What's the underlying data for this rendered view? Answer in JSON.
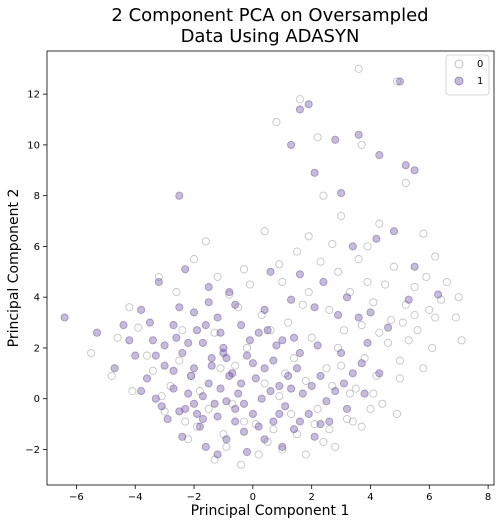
{
  "chart_data": {
    "type": "scatter",
    "title_lines": [
      "2 Component PCA on Oversampled",
      "Data Using ADASYN"
    ],
    "xlabel": "Principal Component 1",
    "ylabel": "Principal Component 2",
    "xlim": [
      -7.0,
      8.2
    ],
    "ylim": [
      -3.4,
      13.7
    ],
    "xticks": [
      -6,
      -4,
      -2,
      0,
      2,
      4,
      6,
      8
    ],
    "yticks": [
      -2,
      0,
      2,
      4,
      6,
      8,
      10,
      12
    ],
    "legend_position": "upper-right",
    "grid": false,
    "series": [
      {
        "name": "0",
        "style": "hollow",
        "color": "#7f7f7f",
        "points": [
          [
            3.6,
            13.0
          ],
          [
            1.6,
            11.8
          ],
          [
            4.9,
            12.5
          ],
          [
            0.8,
            10.9
          ],
          [
            2.2,
            10.3
          ],
          [
            3.7,
            10.0
          ],
          [
            5.2,
            8.5
          ],
          [
            2.4,
            8.0
          ],
          [
            3.0,
            7.2
          ],
          [
            4.3,
            6.9
          ],
          [
            5.8,
            6.5
          ],
          [
            3.9,
            6.0
          ],
          [
            1.5,
            5.8
          ],
          [
            6.2,
            5.6
          ],
          [
            4.8,
            5.2
          ],
          [
            2.9,
            5.0
          ],
          [
            6.6,
            4.6
          ],
          [
            5.5,
            4.4
          ],
          [
            7.0,
            4.0
          ],
          [
            3.3,
            4.2
          ],
          [
            4.1,
            3.8
          ],
          [
            6.0,
            3.5
          ],
          [
            6.9,
            3.2
          ],
          [
            5.1,
            3.0
          ],
          [
            3.7,
            2.9
          ],
          [
            2.6,
            3.5
          ],
          [
            1.9,
            4.2
          ],
          [
            1.0,
            4.6
          ],
          [
            -0.1,
            4.5
          ],
          [
            -0.8,
            4.1
          ],
          [
            -1.6,
            6.2
          ],
          [
            0.4,
            6.6
          ],
          [
            -2.0,
            5.5
          ],
          [
            -3.2,
            4.8
          ],
          [
            -4.2,
            3.6
          ],
          [
            -4.6,
            2.4
          ],
          [
            -3.6,
            1.7
          ],
          [
            -4.8,
            0.9
          ],
          [
            -5.5,
            1.8
          ],
          [
            -3.0,
            -0.5
          ],
          [
            -2.2,
            -1.6
          ],
          [
            -1.3,
            -2.4
          ],
          [
            -0.4,
            -2.6
          ],
          [
            0.5,
            -1.7
          ],
          [
            1.5,
            -1.4
          ],
          [
            2.4,
            -1.7
          ],
          [
            3.2,
            -0.8
          ],
          [
            3.5,
            0.4
          ],
          [
            4.2,
            0.9
          ],
          [
            4.6,
            2.2
          ],
          [
            5.0,
            1.5
          ],
          [
            5.6,
            2.7
          ],
          [
            6.1,
            2.0
          ],
          [
            7.1,
            2.3
          ],
          [
            6.2,
            3.2
          ],
          [
            5.9,
            4.8
          ],
          [
            0.1,
            -1.0
          ],
          [
            -0.7,
            -0.2
          ],
          [
            0.9,
            0.1
          ],
          [
            1.8,
            0.7
          ],
          [
            2.2,
            -0.4
          ],
          [
            2.7,
            0.5
          ],
          [
            3.0,
            1.3
          ],
          [
            1.4,
            1.6
          ],
          [
            0.6,
            2.7
          ],
          [
            -0.2,
            2.0
          ],
          [
            -1.1,
            1.2
          ],
          [
            -1.8,
            0.3
          ],
          [
            -2.5,
            1.5
          ],
          [
            -1.3,
            2.6
          ],
          [
            0.3,
            3.3
          ],
          [
            1.2,
            3.0
          ],
          [
            2.0,
            2.4
          ],
          [
            2.9,
            2.0
          ],
          [
            3.8,
            1.6
          ],
          [
            4.4,
            -0.2
          ],
          [
            3.4,
            -0.9
          ],
          [
            2.6,
            -1.2
          ],
          [
            1.0,
            -2.0
          ],
          [
            -0.9,
            -1.9
          ],
          [
            -1.9,
            -1.1
          ],
          [
            -2.8,
            0.5
          ],
          [
            -3.4,
            1.1
          ],
          [
            -4.1,
            0.3
          ],
          [
            -2.4,
            2.7
          ],
          [
            -0.5,
            3.6
          ],
          [
            1.7,
            3.7
          ],
          [
            2.3,
            5.4
          ],
          [
            3.9,
            4.6
          ],
          [
            4.7,
            3.1
          ],
          [
            5.3,
            2.3
          ],
          [
            5.8,
            1.2
          ],
          [
            4.9,
            -0.6
          ],
          [
            4.0,
            -0.4
          ],
          [
            2.8,
            -1.9
          ],
          [
            1.8,
            -2.2
          ],
          [
            0.7,
            -1.2
          ],
          [
            -0.3,
            -0.9
          ],
          [
            -1.5,
            -0.4
          ],
          [
            -2.1,
            0.9
          ],
          [
            -0.6,
            1.3
          ],
          [
            0.4,
            0.6
          ],
          [
            1.1,
            1.0
          ],
          [
            2.5,
            1.2
          ],
          [
            3.3,
            0.2
          ],
          [
            3.1,
            2.7
          ],
          [
            4.3,
            2.6
          ],
          [
            5.2,
            3.7
          ],
          [
            6.4,
            3.9
          ],
          [
            4.5,
            4.5
          ],
          [
            3.6,
            5.5
          ],
          [
            2.7,
            6.1
          ],
          [
            1.9,
            6.4
          ],
          [
            0.9,
            5.3
          ],
          [
            -0.3,
            5.1
          ],
          [
            -1.2,
            4.8
          ],
          [
            -2.6,
            4.2
          ],
          [
            -3.9,
            2.8
          ],
          [
            -3.1,
            0.1
          ],
          [
            -2.3,
            -0.9
          ],
          [
            -1.0,
            -1.4
          ],
          [
            0.2,
            -2.2
          ],
          [
            1.3,
            -0.6
          ],
          [
            2.1,
            -1.0
          ],
          [
            3.7,
            -1.1
          ],
          [
            4.1,
            0.2
          ],
          [
            5.0,
            0.8
          ],
          [
            5.5,
            3.3
          ]
        ]
      },
      {
        "name": "1",
        "style": "filled",
        "color": "#5b3f95",
        "points": [
          [
            5.0,
            12.5
          ],
          [
            1.9,
            11.6
          ],
          [
            1.6,
            11.4
          ],
          [
            3.6,
            10.4
          ],
          [
            2.8,
            10.2
          ],
          [
            1.3,
            10.0
          ],
          [
            4.3,
            9.6
          ],
          [
            5.2,
            9.2
          ],
          [
            5.5,
            9.0
          ],
          [
            2.1,
            8.9
          ],
          [
            -2.5,
            8.0
          ],
          [
            3.0,
            8.1
          ],
          [
            4.8,
            6.6
          ],
          [
            4.2,
            6.3
          ],
          [
            3.4,
            6.0
          ],
          [
            5.5,
            5.2
          ],
          [
            -6.4,
            3.2
          ],
          [
            -5.3,
            2.6
          ],
          [
            -4.4,
            2.9
          ],
          [
            -3.8,
            3.5
          ],
          [
            -3.2,
            4.6
          ],
          [
            -2.3,
            5.1
          ],
          [
            -1.5,
            4.4
          ],
          [
            -0.8,
            4.2
          ],
          [
            0.6,
            5.0
          ],
          [
            1.6,
            4.9
          ],
          [
            2.4,
            4.6
          ],
          [
            3.2,
            4.0
          ],
          [
            4.0,
            3.4
          ],
          [
            4.6,
            2.8
          ],
          [
            5.3,
            3.9
          ],
          [
            6.3,
            4.1
          ],
          [
            -4.7,
            1.2
          ],
          [
            -4.0,
            1.7
          ],
          [
            -3.4,
            2.3
          ],
          [
            -2.7,
            2.9
          ],
          [
            -2.0,
            3.4
          ],
          [
            -1.2,
            3.2
          ],
          [
            -0.4,
            2.9
          ],
          [
            0.5,
            2.7
          ],
          [
            1.4,
            2.4
          ],
          [
            2.2,
            2.1
          ],
          [
            3.0,
            1.8
          ],
          [
            3.7,
            1.4
          ],
          [
            4.3,
            1.0
          ],
          [
            -3.6,
            0.8
          ],
          [
            -3.0,
            1.3
          ],
          [
            -2.4,
            1.8
          ],
          [
            -1.7,
            2.2
          ],
          [
            -1.0,
            2.0
          ],
          [
            -0.2,
            1.7
          ],
          [
            0.7,
            1.5
          ],
          [
            1.5,
            1.2
          ],
          [
            2.3,
            0.9
          ],
          [
            3.1,
            0.6
          ],
          [
            3.8,
            0.2
          ],
          [
            -3.3,
            0.0
          ],
          [
            -2.7,
            0.4
          ],
          [
            -2.1,
            0.9
          ],
          [
            -1.4,
            1.3
          ],
          [
            -0.7,
            1.0
          ],
          [
            0.1,
            0.8
          ],
          [
            0.9,
            0.5
          ],
          [
            1.7,
            0.2
          ],
          [
            2.5,
            -0.1
          ],
          [
            3.2,
            -0.4
          ],
          [
            -2.9,
            -0.8
          ],
          [
            -2.3,
            -0.4
          ],
          [
            -1.7,
            0.1
          ],
          [
            -1.1,
            0.4
          ],
          [
            -0.5,
            0.2
          ],
          [
            0.3,
            0.0
          ],
          [
            1.1,
            -0.3
          ],
          [
            1.9,
            -0.6
          ],
          [
            2.6,
            -0.9
          ],
          [
            -2.4,
            -1.5
          ],
          [
            -1.8,
            -1.1
          ],
          [
            -1.2,
            -0.7
          ],
          [
            -0.6,
            -0.4
          ],
          [
            0.0,
            -0.6
          ],
          [
            0.7,
            -0.9
          ],
          [
            1.4,
            -1.2
          ],
          [
            2.1,
            -1.5
          ],
          [
            -1.6,
            -1.9
          ],
          [
            -0.9,
            -1.6
          ],
          [
            -0.3,
            -1.3
          ],
          [
            0.4,
            -1.6
          ],
          [
            1.0,
            -1.9
          ],
          [
            -0.2,
            -2.1
          ],
          [
            -1.2,
            -2.2
          ],
          [
            -2.0,
            -0.2
          ],
          [
            -1.5,
            0.6
          ],
          [
            -0.9,
            1.6
          ],
          [
            -0.1,
            2.3
          ],
          [
            0.8,
            2.1
          ],
          [
            1.6,
            1.8
          ],
          [
            -2.6,
            2.4
          ],
          [
            -3.5,
            3.0
          ],
          [
            -4.2,
            2.3
          ],
          [
            -3.8,
            0.3
          ],
          [
            -3.1,
            -0.3
          ],
          [
            -2.2,
            0.2
          ],
          [
            -1.9,
            2.7
          ],
          [
            -1.1,
            2.6
          ],
          [
            -0.4,
            0.6
          ],
          [
            0.4,
            1.2
          ],
          [
            1.2,
            0.9
          ],
          [
            2.0,
            0.5
          ],
          [
            2.8,
            0.3
          ],
          [
            3.4,
            1.0
          ],
          [
            3.9,
            2.2
          ],
          [
            3.6,
            3.2
          ],
          [
            2.9,
            3.3
          ],
          [
            2.1,
            3.6
          ],
          [
            1.3,
            3.9
          ],
          [
            0.4,
            3.5
          ],
          [
            -0.6,
            3.7
          ],
          [
            -1.5,
            3.8
          ],
          [
            -2.5,
            3.6
          ],
          [
            -3.0,
            2.1
          ],
          [
            -2.0,
            1.2
          ],
          [
            -1.3,
            -0.2
          ],
          [
            -0.6,
            -0.9
          ],
          [
            0.2,
            -1.1
          ],
          [
            0.9,
            -0.6
          ],
          [
            1.6,
            -0.9
          ],
          [
            2.3,
            -1.0
          ],
          [
            -0.8,
            0.9
          ],
          [
            0.0,
            1.4
          ],
          [
            -1.9,
            -0.6
          ],
          [
            -2.7,
            1.1
          ],
          [
            -3.3,
            1.7
          ],
          [
            -1.6,
            2.9
          ],
          [
            -0.9,
            -0.1
          ],
          [
            0.6,
            0.3
          ],
          [
            1.3,
            0.4
          ],
          [
            -1.0,
            1.8
          ],
          [
            -2.2,
            2.2
          ],
          [
            -1.4,
            1.6
          ],
          [
            0.2,
            2.6
          ],
          [
            1.0,
            2.3
          ],
          [
            -0.3,
            -0.2
          ],
          [
            -1.7,
            -0.8
          ],
          [
            -2.5,
            -0.5
          ]
        ]
      }
    ]
  }
}
